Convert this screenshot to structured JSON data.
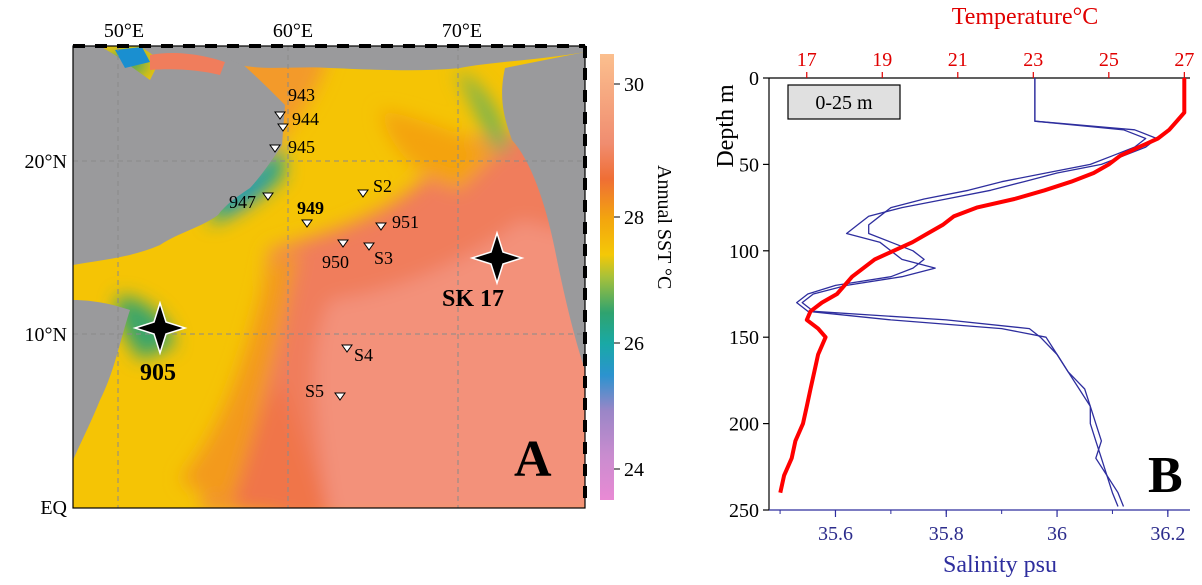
{
  "colors": {
    "temperature": "#ff0000",
    "salinity": "#2e2e9e",
    "land": "#9a9a9c"
  },
  "map": {
    "lon_ticks": [
      "50°E",
      "60°E",
      "70°E"
    ],
    "lat_ticks": [
      "20°N",
      "10°N",
      "EQ"
    ],
    "colorbar": {
      "label": "Annual SST °C",
      "ticks": [
        "30",
        "28",
        "26",
        "24"
      ]
    },
    "stations": [
      {
        "label": "943",
        "bold": false
      },
      {
        "label": "944",
        "bold": false
      },
      {
        "label": "945",
        "bold": false
      },
      {
        "label": "947",
        "bold": false
      },
      {
        "label": "949",
        "bold": true
      },
      {
        "label": "S2",
        "bold": false
      },
      {
        "label": "951",
        "bold": false
      },
      {
        "label": "950",
        "bold": false
      },
      {
        "label": "S3",
        "bold": false
      },
      {
        "label": "S4",
        "bold": false
      },
      {
        "label": "S5",
        "bold": false
      }
    ],
    "cores": [
      {
        "label": "905"
      },
      {
        "label": "SK 17"
      }
    ],
    "panel_label": "A"
  },
  "profile": {
    "top_axis_label": "Temperature°C",
    "top_ticks": [
      "17",
      "19",
      "21",
      "23",
      "25",
      "27"
    ],
    "left_axis_label": "Depth m",
    "left_ticks": [
      "0",
      "50",
      "100",
      "150",
      "200",
      "250"
    ],
    "bottom_axis_label": "Salinity psu",
    "bottom_ticks": [
      "35.6",
      "35.8",
      "36",
      "36.2"
    ],
    "legend_box": "0-25 m",
    "panel_label": "B"
  },
  "chart_data": [
    {
      "type": "heatmap",
      "title": "",
      "xlabel": "",
      "ylabel": "",
      "x_range": [
        47.5,
        77.5
      ],
      "y_range": [
        0,
        27
      ],
      "colorbar": {
        "label": "Annual SST °C",
        "range": [
          23.5,
          30.5
        ]
      },
      "stations": [
        {
          "name": "943",
          "lon": 59.7,
          "lat": 22.3
        },
        {
          "name": "944",
          "lon": 59.8,
          "lat": 21.9
        },
        {
          "name": "945",
          "lon": 59.2,
          "lat": 20.7
        },
        {
          "name": "947",
          "lon": 58.8,
          "lat": 17.9
        },
        {
          "name": "949",
          "lon": 61.2,
          "lat": 16.5
        },
        {
          "name": "S2",
          "lon": 64.7,
          "lat": 18.1
        },
        {
          "name": "951",
          "lon": 65.8,
          "lat": 16.2
        },
        {
          "name": "950",
          "lon": 63.6,
          "lat": 15.2
        },
        {
          "name": "S3",
          "lon": 64.9,
          "lat": 15.0
        },
        {
          "name": "S4",
          "lon": 63.6,
          "lat": 9.3
        },
        {
          "name": "S5",
          "lon": 63.2,
          "lat": 6.5
        }
      ],
      "cores": [
        {
          "name": "905",
          "lon": 52.5,
          "lat": 10.5
        },
        {
          "name": "SK 17",
          "lon": 72.4,
          "lat": 14.4
        }
      ]
    },
    {
      "type": "line",
      "xlabel": "Salinity psu",
      "x2label": "Temperature°C",
      "ylabel": "Depth m",
      "ylim": [
        250,
        0
      ],
      "xlim": [
        35.48,
        36.24
      ],
      "x2lim": [
        16.0,
        27.15
      ],
      "series": [
        {
          "axis": "temperature",
          "depth": [
            0,
            20,
            25,
            30,
            35,
            40,
            45,
            50,
            55,
            60,
            65,
            70,
            75,
            80,
            85,
            90,
            95,
            100,
            105,
            110,
            115,
            120,
            125,
            130,
            135,
            140,
            145,
            150,
            160,
            170,
            180,
            190,
            200,
            210,
            220,
            230,
            240
          ],
          "values": [
            27.0,
            27.0,
            26.8,
            26.6,
            26.3,
            25.8,
            25.3,
            25.0,
            24.6,
            24.0,
            23.3,
            22.5,
            21.5,
            20.9,
            20.6,
            20.2,
            19.8,
            19.3,
            18.8,
            18.5,
            18.2,
            18.0,
            17.8,
            17.4,
            17.1,
            17.0,
            17.3,
            17.5,
            17.3,
            17.2,
            17.1,
            17.0,
            16.9,
            16.7,
            16.6,
            16.4,
            16.3
          ]
        },
        {
          "axis": "salinity",
          "depth": [
            0,
            20,
            25,
            30,
            35,
            40,
            45,
            50,
            55,
            60,
            65,
            70,
            75,
            80,
            85,
            90,
            95,
            100,
            105,
            110,
            115,
            120,
            125,
            130,
            135,
            140,
            145,
            150,
            160,
            170,
            180,
            190,
            200,
            210,
            220,
            230,
            240,
            248
          ],
          "values": [
            35.96,
            35.96,
            35.96,
            36.14,
            36.18,
            36.16,
            36.12,
            36.08,
            36.0,
            35.94,
            35.88,
            35.8,
            35.72,
            35.66,
            35.64,
            35.62,
            35.68,
            35.7,
            35.72,
            35.78,
            35.72,
            35.62,
            35.56,
            35.54,
            35.56,
            35.8,
            35.95,
            35.97,
            36.0,
            36.02,
            36.04,
            36.06,
            36.07,
            36.08,
            36.07,
            36.09,
            36.1,
            36.11
          ]
        },
        {
          "axis": "salinity",
          "depth": [
            0,
            20,
            25,
            30,
            35,
            40,
            45,
            50,
            55,
            60,
            65,
            70,
            75,
            80,
            85,
            90,
            95,
            100,
            105,
            110,
            115,
            120,
            125,
            130,
            135,
            140,
            145,
            150,
            160,
            170,
            180,
            190,
            200,
            210,
            220,
            230,
            240,
            248
          ],
          "values": [
            35.96,
            35.96,
            35.96,
            36.12,
            36.16,
            36.14,
            36.1,
            36.06,
            35.98,
            35.9,
            35.84,
            35.76,
            35.7,
            35.68,
            35.66,
            35.66,
            35.7,
            35.74,
            35.76,
            35.74,
            35.7,
            35.6,
            35.55,
            35.53,
            35.55,
            35.7,
            35.9,
            35.98,
            36.0,
            36.02,
            36.05,
            36.06,
            36.06,
            36.07,
            36.08,
            36.09,
            36.11,
            36.12
          ]
        }
      ]
    }
  ]
}
